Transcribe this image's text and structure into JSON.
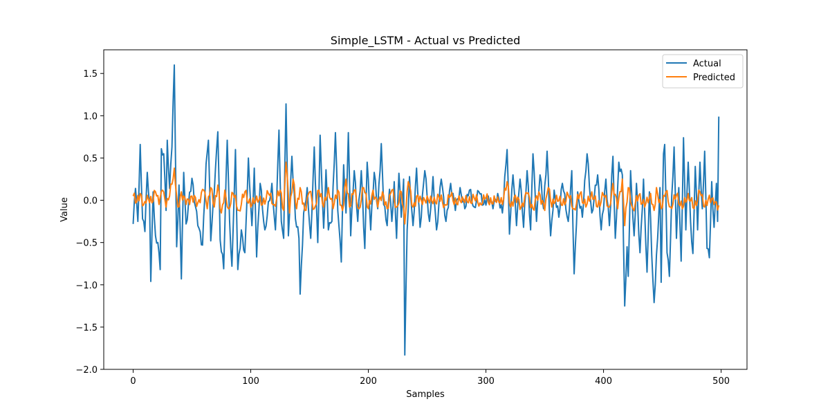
{
  "chart_data": {
    "type": "line",
    "title": "Simple_LSTM - Actual vs Predicted",
    "xlabel": "Samples",
    "ylabel": "Value",
    "xlim": [
      -25,
      522
    ],
    "ylim": [
      -2.0,
      1.78
    ],
    "xticks": [
      0,
      100,
      200,
      300,
      400,
      500
    ],
    "yticks": [
      -2.0,
      -1.5,
      -1.0,
      -0.5,
      0.0,
      0.5,
      1.0,
      1.5
    ],
    "grid": false,
    "legend_position": "upper right",
    "series": [
      {
        "name": "Actual",
        "color": "#1f77b4",
        "keypoints": [
          [
            0,
            -0.28
          ],
          [
            2,
            0.14
          ],
          [
            4,
            -0.25
          ],
          [
            6,
            0.66
          ],
          [
            8,
            -0.22
          ],
          [
            10,
            -0.37
          ],
          [
            12,
            0.33
          ],
          [
            14,
            -0.05
          ],
          [
            15,
            -0.96
          ],
          [
            17,
            0.1
          ],
          [
            19,
            -0.42
          ],
          [
            21,
            -0.5
          ],
          [
            23,
            -0.82
          ],
          [
            24,
            0.61
          ],
          [
            26,
            0.55
          ],
          [
            28,
            -0.12
          ],
          [
            29,
            0.71
          ],
          [
            31,
            0.14
          ],
          [
            33,
            0.63
          ],
          [
            35,
            1.6
          ],
          [
            37,
            -0.55
          ],
          [
            39,
            0.18
          ],
          [
            41,
            -0.93
          ],
          [
            43,
            0.33
          ],
          [
            45,
            -0.28
          ],
          [
            50,
            0.26
          ],
          [
            55,
            -0.3
          ],
          [
            59,
            -0.53
          ],
          [
            62,
            0.43
          ],
          [
            64,
            0.71
          ],
          [
            66,
            -0.48
          ],
          [
            69,
            0.1
          ],
          [
            72,
            0.81
          ],
          [
            74,
            -0.47
          ],
          [
            77,
            -0.81
          ],
          [
            80,
            0.71
          ],
          [
            82,
            -0.24
          ],
          [
            84,
            -0.78
          ],
          [
            87,
            0.6
          ],
          [
            89,
            -0.82
          ],
          [
            92,
            -0.35
          ],
          [
            95,
            -0.62
          ],
          [
            98,
            0.5
          ],
          [
            101,
            -0.3
          ],
          [
            103,
            0.38
          ],
          [
            105,
            -0.67
          ],
          [
            108,
            0.2
          ],
          [
            112,
            -0.35
          ],
          [
            118,
            0.2
          ],
          [
            121,
            -0.35
          ],
          [
            124,
            0.83
          ],
          [
            126,
            -0.25
          ],
          [
            128,
            -0.45
          ],
          [
            130,
            1.14
          ],
          [
            132,
            -0.42
          ],
          [
            135,
            0.52
          ],
          [
            138,
            -0.22
          ],
          [
            141,
            -0.45
          ],
          [
            142,
            -1.11
          ],
          [
            145,
            -0.15
          ],
          [
            148,
            0.15
          ],
          [
            151,
            -0.45
          ],
          [
            154,
            0.63
          ],
          [
            157,
            -0.5
          ],
          [
            159,
            0.77
          ],
          [
            162,
            -0.33
          ],
          [
            164,
            0.36
          ],
          [
            166,
            -0.35
          ],
          [
            169,
            -0.25
          ],
          [
            172,
            0.8
          ],
          [
            174,
            -0.12
          ],
          [
            177,
            -0.73
          ],
          [
            179,
            0.42
          ],
          [
            181,
            -0.15
          ],
          [
            183,
            0.8
          ],
          [
            185,
            -0.42
          ],
          [
            188,
            0.35
          ],
          [
            191,
            -0.25
          ],
          [
            194,
            0.35
          ],
          [
            197,
            -0.57
          ],
          [
            199,
            0.45
          ],
          [
            202,
            -0.35
          ],
          [
            205,
            0.33
          ],
          [
            208,
            -0.1
          ],
          [
            211,
            0.67
          ],
          [
            213,
            -0.05
          ],
          [
            216,
            -0.3
          ],
          [
            218,
            0.13
          ],
          [
            220,
            -0.25
          ],
          [
            222,
            0.22
          ],
          [
            224,
            -0.45
          ],
          [
            226,
            0.32
          ],
          [
            228,
            -0.2
          ],
          [
            230,
            0.25
          ],
          [
            231,
            -1.83
          ],
          [
            233,
            -0.35
          ],
          [
            235,
            0.28
          ],
          [
            238,
            -0.3
          ],
          [
            241,
            0.38
          ],
          [
            244,
            -0.32
          ],
          [
            248,
            0.35
          ],
          [
            252,
            -0.25
          ],
          [
            255,
            0.28
          ],
          [
            258,
            -0.35
          ],
          [
            262,
            0.25
          ],
          [
            266,
            -0.25
          ],
          [
            270,
            0.2
          ],
          [
            274,
            -0.12
          ],
          [
            278,
            0.15
          ],
          [
            282,
            -0.1
          ],
          [
            286,
            0.12
          ],
          [
            290,
            -0.08
          ],
          [
            294,
            0.1
          ],
          [
            298,
            -0.05
          ],
          [
            302,
            0.05
          ],
          [
            306,
            -0.1
          ],
          [
            310,
            0.08
          ],
          [
            314,
            -0.15
          ],
          [
            318,
            0.6
          ],
          [
            320,
            -0.4
          ],
          [
            323,
            0.3
          ],
          [
            326,
            -0.3
          ],
          [
            329,
            0.25
          ],
          [
            332,
            -0.32
          ],
          [
            335,
            0.35
          ],
          [
            338,
            -0.35
          ],
          [
            340,
            0.55
          ],
          [
            343,
            -0.25
          ],
          [
            346,
            0.3
          ],
          [
            349,
            -0.1
          ],
          [
            352,
            0.58
          ],
          [
            355,
            -0.42
          ],
          [
            358,
            0.12
          ],
          [
            362,
            -0.2
          ],
          [
            365,
            0.2
          ],
          [
            370,
            -0.25
          ],
          [
            373,
            0.35
          ],
          [
            375,
            -0.87
          ],
          [
            378,
            0.1
          ],
          [
            382,
            -0.2
          ],
          [
            386,
            0.55
          ],
          [
            390,
            -0.15
          ],
          [
            395,
            0.3
          ],
          [
            398,
            -0.35
          ],
          [
            402,
            0.25
          ],
          [
            405,
            -0.3
          ],
          [
            408,
            0.52
          ],
          [
            410,
            -0.45
          ],
          [
            413,
            0.45
          ],
          [
            416,
            0.3
          ],
          [
            418,
            -1.25
          ],
          [
            420,
            -0.55
          ],
          [
            421,
            -0.9
          ],
          [
            423,
            0.35
          ],
          [
            426,
            -0.42
          ],
          [
            428,
            0.2
          ],
          [
            431,
            -0.62
          ],
          [
            434,
            0.25
          ],
          [
            437,
            -0.85
          ],
          [
            439,
            0.1
          ],
          [
            442,
            -0.95
          ],
          [
            443,
            -1.21
          ],
          [
            446,
            -0.45
          ],
          [
            448,
            0.15
          ],
          [
            449,
            -0.97
          ],
          [
            451,
            0.55
          ],
          [
            452,
            0.66
          ],
          [
            454,
            -0.62
          ],
          [
            456,
            -0.9
          ],
          [
            458,
            0.05
          ],
          [
            460,
            0.63
          ],
          [
            462,
            -0.45
          ],
          [
            464,
            0.15
          ],
          [
            466,
            -0.72
          ],
          [
            468,
            0.74
          ],
          [
            470,
            -0.35
          ],
          [
            472,
            0.45
          ],
          [
            474,
            -0.25
          ],
          [
            476,
            -0.63
          ],
          [
            478,
            0.4
          ],
          [
            480,
            -0.35
          ],
          [
            482,
            0.45
          ],
          [
            484,
            -0.1
          ],
          [
            486,
            0.58
          ],
          [
            488,
            -0.57
          ],
          [
            490,
            -0.68
          ],
          [
            492,
            0.22
          ],
          [
            494,
            -0.32
          ],
          [
            496,
            0.2
          ],
          [
            497,
            -0.25
          ],
          [
            498,
            0.99
          ]
        ]
      },
      {
        "name": "Predicted",
        "color": "#ff7f0e",
        "keypoints": [
          [
            0,
            0.05
          ],
          [
            3,
            -0.02
          ],
          [
            6,
            0.08
          ],
          [
            9,
            -0.05
          ],
          [
            12,
            0.06
          ],
          [
            16,
            -0.03
          ],
          [
            19,
            0.1
          ],
          [
            22,
            -0.05
          ],
          [
            25,
            0.12
          ],
          [
            28,
            -0.08
          ],
          [
            31,
            0.05
          ],
          [
            35,
            0.38
          ],
          [
            38,
            -0.08
          ],
          [
            41,
            0.1
          ],
          [
            45,
            -0.05
          ],
          [
            50,
            0.05
          ],
          [
            55,
            -0.03
          ],
          [
            60,
            0.12
          ],
          [
            63,
            -0.1
          ],
          [
            66,
            0.15
          ],
          [
            69,
            -0.08
          ],
          [
            72,
            0.18
          ],
          [
            75,
            -0.15
          ],
          [
            78,
            0.12
          ],
          [
            81,
            -0.1
          ],
          [
            85,
            0.08
          ],
          [
            90,
            -0.12
          ],
          [
            95,
            0.1
          ],
          [
            100,
            -0.08
          ],
          [
            105,
            0.05
          ],
          [
            110,
            -0.05
          ],
          [
            115,
            0.08
          ],
          [
            120,
            -0.05
          ],
          [
            125,
            0.12
          ],
          [
            128,
            -0.12
          ],
          [
            130,
            0.45
          ],
          [
            133,
            -0.15
          ],
          [
            136,
            0.25
          ],
          [
            139,
            -0.1
          ],
          [
            142,
            0.15
          ],
          [
            146,
            -0.12
          ],
          [
            150,
            0.1
          ],
          [
            154,
            -0.1
          ],
          [
            158,
            0.12
          ],
          [
            162,
            -0.08
          ],
          [
            166,
            0.15
          ],
          [
            170,
            -0.1
          ],
          [
            174,
            0.12
          ],
          [
            178,
            -0.12
          ],
          [
            181,
            0.25
          ],
          [
            184,
            -0.08
          ],
          [
            188,
            0.12
          ],
          [
            192,
            -0.1
          ],
          [
            196,
            0.15
          ],
          [
            200,
            -0.1
          ],
          [
            204,
            0.12
          ],
          [
            208,
            -0.08
          ],
          [
            212,
            0.1
          ],
          [
            216,
            -0.1
          ],
          [
            220,
            0.12
          ],
          [
            224,
            -0.08
          ],
          [
            228,
            0.1
          ],
          [
            231,
            -0.28
          ],
          [
            234,
            0.22
          ],
          [
            238,
            -0.08
          ],
          [
            242,
            0.06
          ],
          [
            246,
            -0.05
          ],
          [
            250,
            0.05
          ],
          [
            255,
            -0.04
          ],
          [
            260,
            0.04
          ],
          [
            265,
            -0.05
          ],
          [
            270,
            0.05
          ],
          [
            275,
            -0.04
          ],
          [
            280,
            0.04
          ],
          [
            285,
            -0.03
          ],
          [
            290,
            0.03
          ],
          [
            295,
            -0.03
          ],
          [
            300,
            0.03
          ],
          [
            305,
            -0.04
          ],
          [
            310,
            0.04
          ],
          [
            314,
            -0.05
          ],
          [
            318,
            0.22
          ],
          [
            321,
            -0.08
          ],
          [
            325,
            0.06
          ],
          [
            330,
            -0.08
          ],
          [
            335,
            0.08
          ],
          [
            340,
            -0.1
          ],
          [
            345,
            0.1
          ],
          [
            350,
            -0.12
          ],
          [
            353,
            0.15
          ],
          [
            356,
            -0.08
          ],
          [
            360,
            0.06
          ],
          [
            365,
            -0.06
          ],
          [
            370,
            0.06
          ],
          [
            375,
            -0.1
          ],
          [
            380,
            0.08
          ],
          [
            385,
            -0.08
          ],
          [
            390,
            0.1
          ],
          [
            395,
            -0.08
          ],
          [
            400,
            0.06
          ],
          [
            405,
            -0.08
          ],
          [
            408,
            0.2
          ],
          [
            412,
            -0.1
          ],
          [
            416,
            0.25
          ],
          [
            418,
            -0.3
          ],
          [
            421,
            0.15
          ],
          [
            425,
            -0.1
          ],
          [
            430,
            0.06
          ],
          [
            435,
            -0.08
          ],
          [
            440,
            0.08
          ],
          [
            443,
            -0.12
          ],
          [
            445,
            0.15
          ],
          [
            449,
            -0.1
          ],
          [
            453,
            0.1
          ],
          [
            457,
            -0.08
          ],
          [
            462,
            0.06
          ],
          [
            467,
            -0.1
          ],
          [
            472,
            0.08
          ],
          [
            477,
            -0.1
          ],
          [
            482,
            0.1
          ],
          [
            486,
            -0.08
          ],
          [
            490,
            0.06
          ],
          [
            494,
            -0.05
          ],
          [
            498,
            -0.06
          ]
        ]
      }
    ]
  }
}
